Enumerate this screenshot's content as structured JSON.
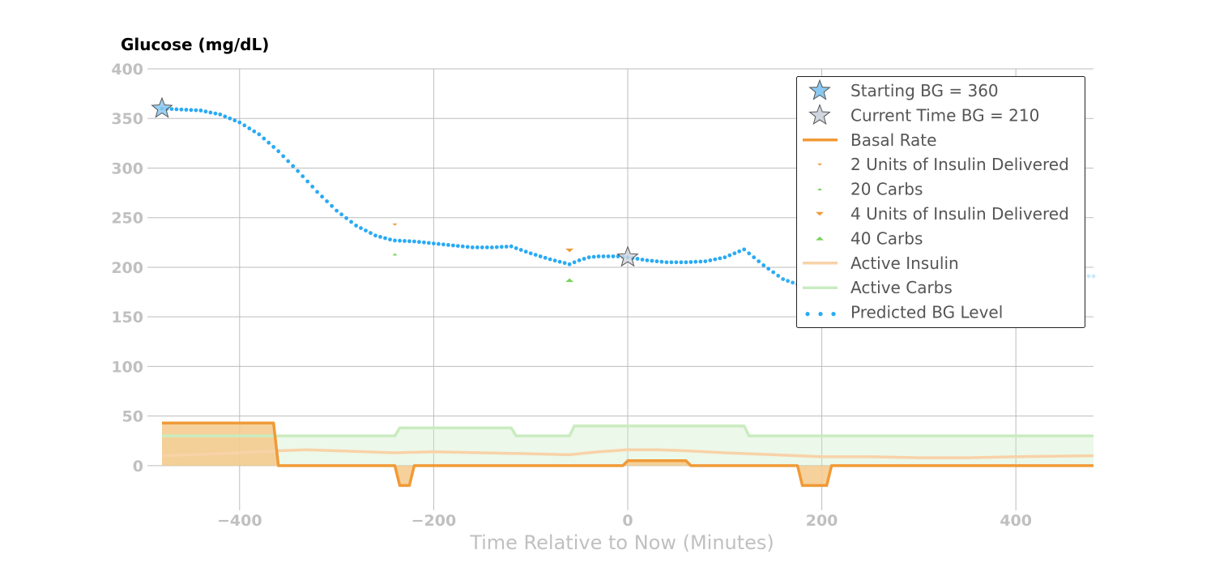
{
  "chart_data": {
    "type": "line",
    "title": "Glucose (mg/dL)",
    "xlabel": "Time Relative to Now (Minutes)",
    "ylabel": "",
    "xlim": [
      -495,
      480
    ],
    "ylim": [
      -45,
      400
    ],
    "x_ticks": [
      -400,
      -200,
      0,
      200,
      400
    ],
    "x_tick_labels": [
      "−400",
      "−200",
      "0",
      "200",
      "400"
    ],
    "y_ticks": [
      0,
      50,
      100,
      150,
      200,
      250,
      300,
      350,
      400
    ],
    "y_tick_labels": [
      "0",
      "50",
      "100",
      "150",
      "200",
      "250",
      "300",
      "350",
      "400"
    ],
    "grid": true,
    "legend_position": "top-right",
    "legend": [
      "Starting BG =  360",
      "Current Time BG =  210",
      "Basal Rate",
      "2 Units of Insulin Delivered",
      "20 Carbs",
      "4 Units of Insulin Delivered",
      "40 Carbs",
      "Active Insulin",
      "Active Carbs",
      "Predicted BG Level"
    ],
    "colors": {
      "bg": "#29aaf4",
      "basal": "#f09a37",
      "basal_fill": "#f5c98a",
      "insulin": "#f09a37",
      "carbs": "#76d35a",
      "active_insulin": "#f8d2a8",
      "active_carbs": "#c9ecc0",
      "star_start": "#8ac8f0",
      "star_current": "#d0d6de"
    },
    "starting_bg": {
      "x": -480,
      "y": 360
    },
    "current_bg": {
      "x": 0,
      "y": 210
    },
    "predicted_bg": {
      "x": [
        -480,
        -460,
        -440,
        -420,
        -400,
        -380,
        -360,
        -340,
        -320,
        -300,
        -280,
        -260,
        -245,
        -240,
        -220,
        -200,
        -180,
        -160,
        -140,
        -120,
        -100,
        -80,
        -60,
        -50,
        -40,
        -30,
        -20,
        -10,
        0,
        20,
        40,
        60,
        80,
        100,
        120,
        140,
        160,
        180,
        200,
        220,
        240,
        260,
        280,
        300,
        320,
        340,
        360,
        380,
        400,
        420,
        440,
        460,
        480
      ],
      "y": [
        360,
        359,
        358,
        354,
        346,
        334,
        317,
        297,
        276,
        257,
        242,
        232,
        228,
        227,
        226,
        224,
        222,
        220,
        220,
        221,
        214,
        208,
        203,
        207,
        210,
        211,
        211,
        211,
        210,
        207,
        205,
        205,
        206,
        210,
        218,
        202,
        188,
        181,
        178,
        177,
        178,
        180,
        182,
        184,
        186,
        187,
        188,
        189,
        190,
        190,
        191,
        191,
        191
      ]
    },
    "basal_rate": {
      "x": [
        -480,
        -365,
        -360,
        -240,
        -235,
        -225,
        -220,
        -5,
        0,
        60,
        65,
        175,
        180,
        205,
        210,
        480
      ],
      "y": [
        43,
        43,
        0,
        0,
        -20,
        -20,
        0,
        0,
        5,
        5,
        0,
        0,
        -20,
        -20,
        0,
        0
      ]
    },
    "active_insulin": {
      "x": [
        -480,
        -420,
        -360,
        -330,
        -300,
        -240,
        -200,
        -150,
        -100,
        -60,
        -30,
        0,
        30,
        60,
        100,
        150,
        200,
        250,
        300,
        350,
        400,
        480
      ],
      "y": [
        10,
        12,
        15,
        16,
        15,
        13,
        14,
        13,
        12,
        11,
        14,
        16,
        16,
        15,
        13,
        11,
        9,
        9,
        8,
        8,
        9,
        10
      ]
    },
    "active_carbs": {
      "x": [
        -480,
        -240,
        -235,
        -120,
        -115,
        -60,
        -55,
        120,
        125,
        480
      ],
      "y": [
        30,
        30,
        38,
        38,
        30,
        30,
        40,
        40,
        30,
        30
      ]
    },
    "insulin_events": [
      {
        "x": -240,
        "y": 243,
        "units": 2
      },
      {
        "x": -60,
        "y": 217,
        "units": 4
      }
    ],
    "carb_events": [
      {
        "x": -240,
        "y": 213,
        "grams": 20
      },
      {
        "x": -60,
        "y": 187,
        "grams": 40
      }
    ]
  }
}
